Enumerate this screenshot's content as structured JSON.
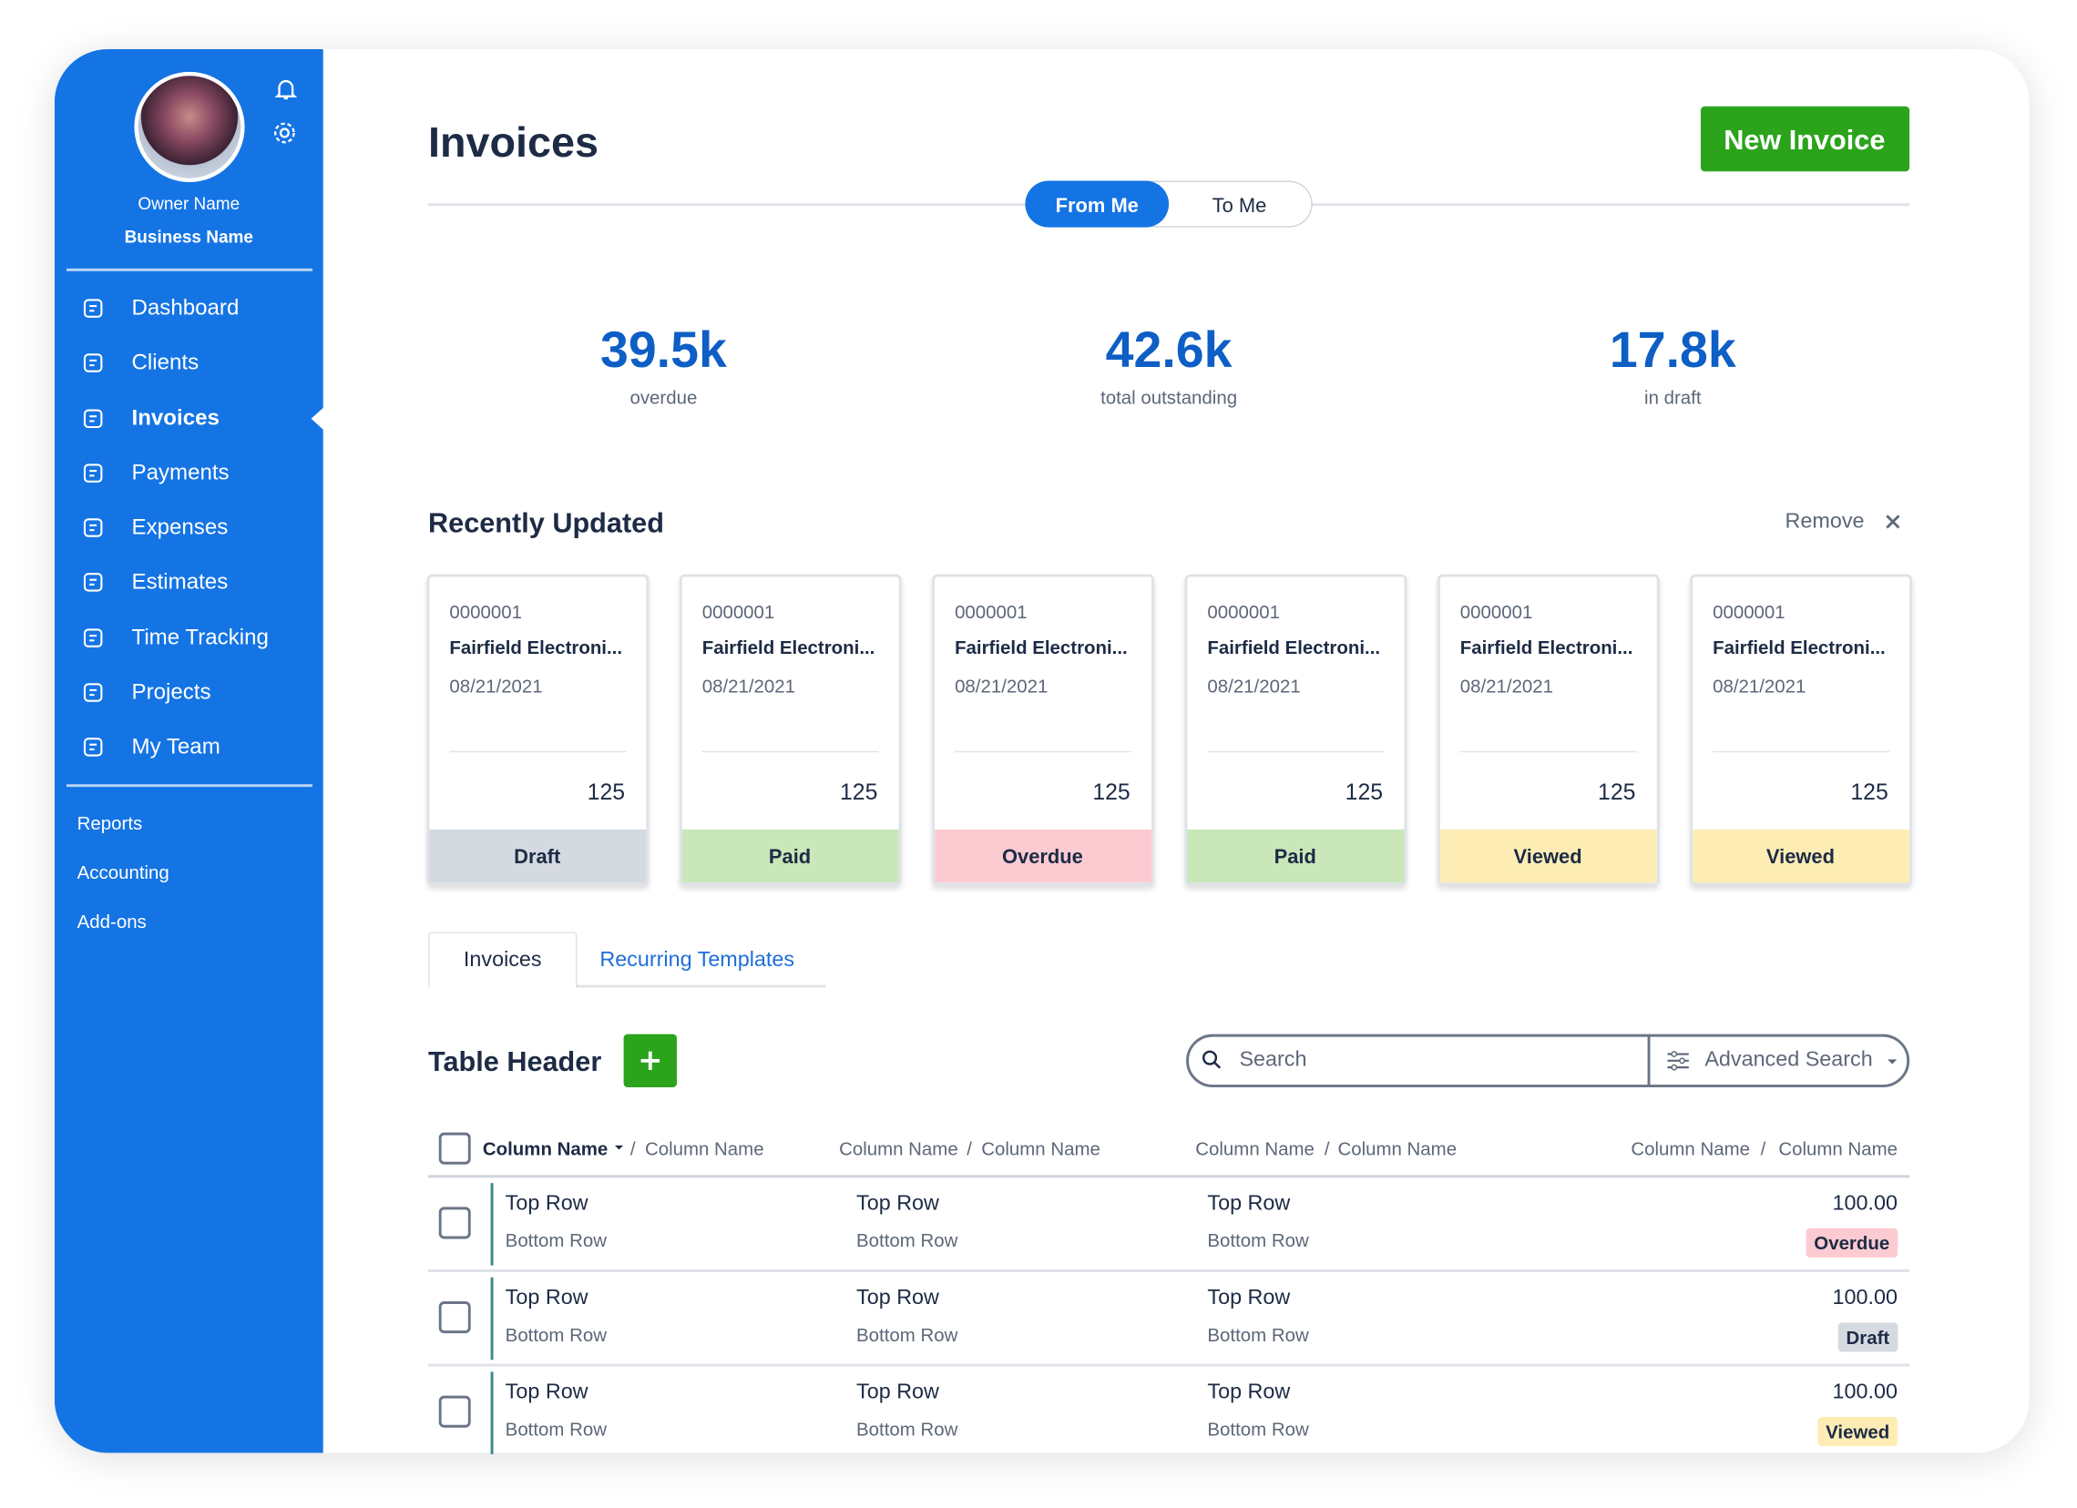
{
  "sidebar": {
    "owner_name": "Owner Name",
    "business_name": "Business Name",
    "nav": [
      "Dashboard",
      "Clients",
      "Invoices",
      "Payments",
      "Expenses",
      "Estimates",
      "Time Tracking",
      "Projects",
      "My Team"
    ],
    "secondary": [
      "Reports",
      "Accounting",
      "Add-ons"
    ]
  },
  "header": {
    "title": "Invoices",
    "new_invoice": "New Invoice",
    "toggle": [
      "From Me",
      "To Me"
    ]
  },
  "stats": [
    {
      "value": "39.5k",
      "label": "overdue"
    },
    {
      "value": "42.6k",
      "label": "total outstanding"
    },
    {
      "value": "17.8k",
      "label": "in draft"
    }
  ],
  "recent": {
    "title": "Recently Updated",
    "remove": "Remove",
    "cards": [
      {
        "number": "0000001",
        "client": "Fairfield Electroni...",
        "date": "08/21/2021",
        "amount": "125",
        "status": "Draft",
        "color": "#d5dae1"
      },
      {
        "number": "0000001",
        "client": "Fairfield Electroni...",
        "date": "08/21/2021",
        "amount": "125",
        "status": "Paid",
        "color": "#c9e7b9"
      },
      {
        "number": "0000001",
        "client": "Fairfield Electroni...",
        "date": "08/21/2021",
        "amount": "125",
        "status": "Overdue",
        "color": "#fccbd1"
      },
      {
        "number": "0000001",
        "client": "Fairfield Electroni...",
        "date": "08/21/2021",
        "amount": "125",
        "status": "Paid",
        "color": "#c9e7b9"
      },
      {
        "number": "0000001",
        "client": "Fairfield Electroni...",
        "date": "08/21/2021",
        "amount": "125",
        "status": "Viewed",
        "color": "#fdedb5"
      },
      {
        "number": "0000001",
        "client": "Fairfield Electroni...",
        "date": "08/21/2021",
        "amount": "125",
        "status": "Viewed",
        "color": "#fdedb5"
      }
    ]
  },
  "tabs": [
    "Invoices",
    "Recurring Templates"
  ],
  "table": {
    "title": "Table Header",
    "search": "Search",
    "advanced_search": "Advanced Search",
    "columns": [
      [
        "Column Name",
        "Column Name"
      ],
      [
        "Column Name",
        "Column Name"
      ],
      [
        "Column Name",
        "Column Name"
      ],
      [
        "Column Name",
        "Column Name"
      ]
    ],
    "rows": [
      {
        "cells": [
          [
            "Top Row",
            "Bottom Row"
          ],
          [
            "Top Row",
            "Bottom Row"
          ],
          [
            "Top Row",
            "Bottom Row"
          ]
        ],
        "amount": "100.00",
        "status": "Overdue",
        "color": "#fccbd1"
      },
      {
        "cells": [
          [
            "Top Row",
            "Bottom Row"
          ],
          [
            "Top Row",
            "Bottom Row"
          ],
          [
            "Top Row",
            "Bottom Row"
          ]
        ],
        "amount": "100.00",
        "status": "Draft",
        "color": "#d5dae1"
      },
      {
        "cells": [
          [
            "Top Row",
            "Bottom Row"
          ],
          [
            "Top Row",
            "Bottom Row"
          ],
          [
            "Top Row",
            "Bottom Row"
          ]
        ],
        "amount": "100.00",
        "status": "Viewed",
        "color": "#fdedb5"
      }
    ]
  }
}
